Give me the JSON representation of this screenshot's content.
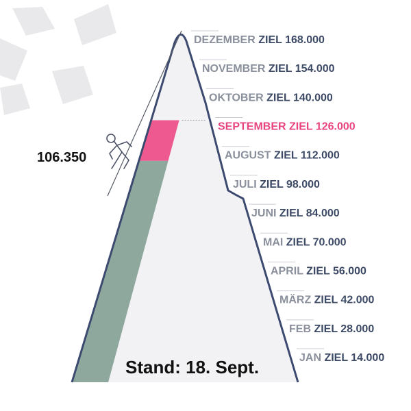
{
  "chart_data": {
    "type": "bar",
    "title": "",
    "current_value_label": "106.350",
    "current_value": 106350,
    "stand_label": "Stand: 18. Sept.",
    "ylim": [
      0,
      168000
    ],
    "goals": [
      {
        "month": "JAN",
        "ziel": "ZIEL",
        "value_label": "14.000",
        "value": 14000
      },
      {
        "month": "FEB",
        "ziel": "ZIEL",
        "value_label": "28.000",
        "value": 28000
      },
      {
        "month": "MÄRZ",
        "ziel": "ZIEL",
        "value_label": "42.000",
        "value": 42000
      },
      {
        "month": "APRIL",
        "ziel": "ZIEL",
        "value_label": "56.000",
        "value": 56000
      },
      {
        "month": "MAI",
        "ziel": "ZIEL",
        "value_label": "70.000",
        "value": 70000
      },
      {
        "month": "JUNI",
        "ziel": "ZIEL",
        "value_label": "84.000",
        "value": 84000
      },
      {
        "month": "JULI",
        "ziel": "ZIEL",
        "value_label": "98.000",
        "value": 98000
      },
      {
        "month": "AUGUST",
        "ziel": "ZIEL",
        "value_label": "112.000",
        "value": 112000
      },
      {
        "month": "SEPTEMBER",
        "ziel": "ZIEL",
        "value_label": "126.000",
        "value": 126000,
        "highlight": true
      },
      {
        "month": "OKTOBER",
        "ziel": "ZIEL",
        "value_label": "140.000",
        "value": 140000
      },
      {
        "month": "NOVEMBER",
        "ziel": "ZIEL",
        "value_label": "154.000",
        "value": 154000
      },
      {
        "month": "DEZEMBER",
        "ziel": "ZIEL",
        "value_label": "168.000",
        "value": 168000
      }
    ],
    "colors": {
      "mountain_fill": "#f2f2f4",
      "mountain_outline": "#3d4a70",
      "progress_fill": "#8fa89e",
      "highlight_fill": "#ee5a8f",
      "highlight_text": "#e8437f",
      "month_text": "#8a8f9c",
      "value_text": "#3d4a66",
      "decor": "#e9e9eb",
      "dark_text": "#111111"
    }
  }
}
